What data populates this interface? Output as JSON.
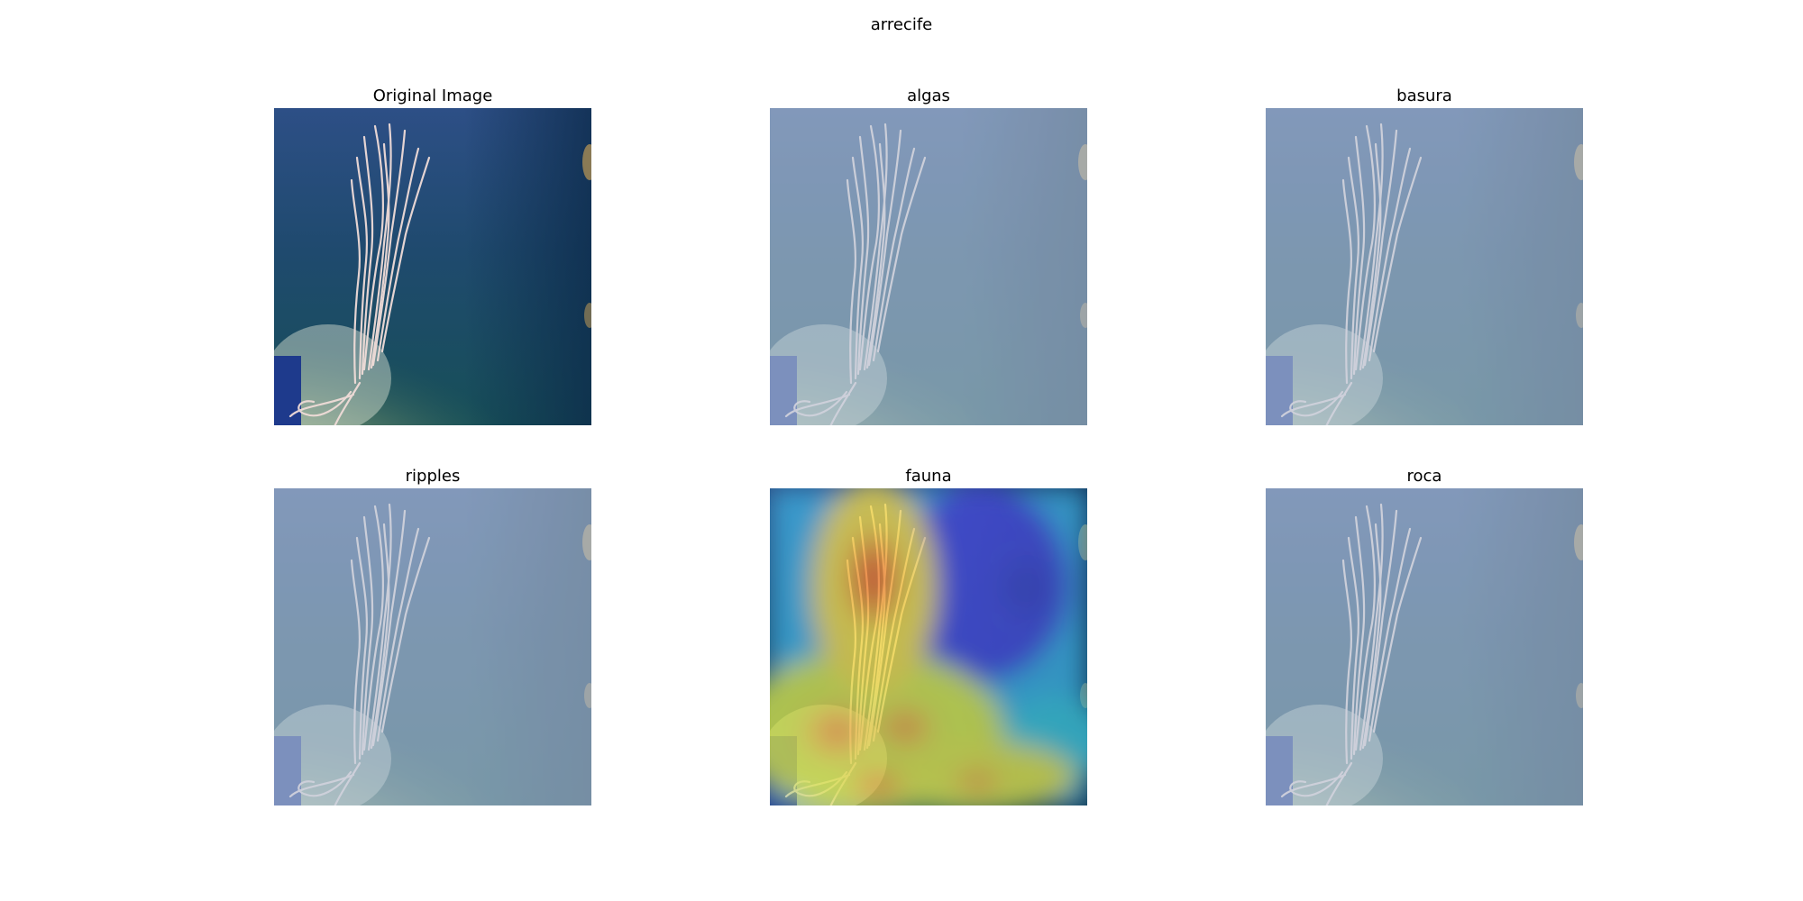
{
  "figure": {
    "title": "arrecife"
  },
  "panels": [
    {
      "title": "Original Image",
      "kind": "original"
    },
    {
      "title": "algas",
      "kind": "faded"
    },
    {
      "title": "basura",
      "kind": "faded"
    },
    {
      "title": "ripples",
      "kind": "faded"
    },
    {
      "title": "fauna",
      "kind": "heatmap"
    },
    {
      "title": "roca",
      "kind": "faded"
    }
  ]
}
